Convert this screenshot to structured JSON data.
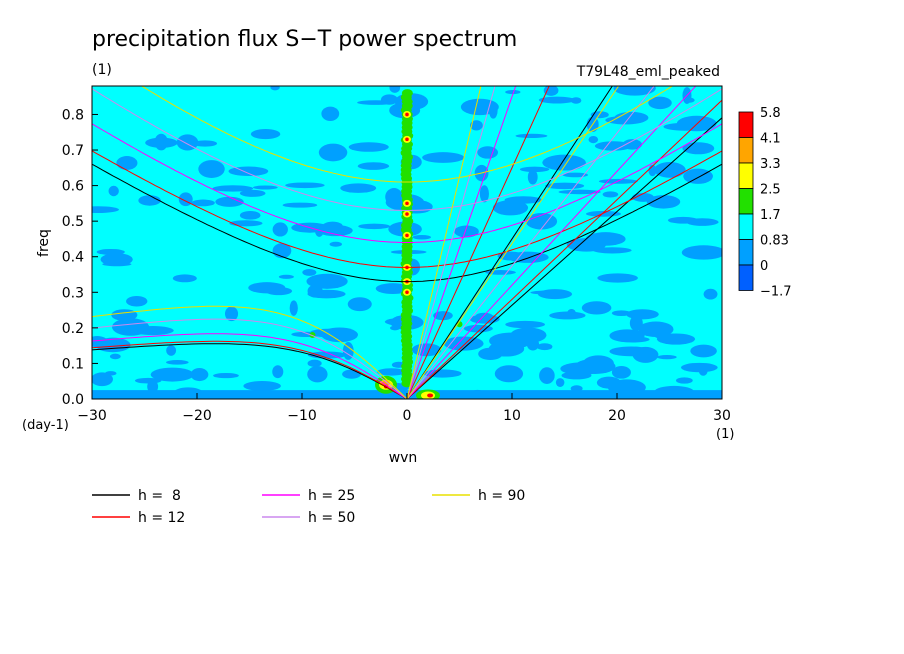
{
  "chart_data": {
    "type": "heatmap",
    "title": "precipitation flux S−T power spectrum",
    "units_left": "(1)",
    "run_name": "T79L48_eml_peaked",
    "xlabel": "wvn",
    "ylabel": "freq",
    "x_units": "(1)",
    "y_units": "(day-1)",
    "xlim": [
      -30,
      30
    ],
    "ylim": [
      0,
      0.88
    ],
    "x_ticks": [
      -30,
      -20,
      -10,
      0,
      10,
      20,
      30
    ],
    "x_tick_labels": [
      "−30",
      "−20",
      "−10",
      "0",
      "10",
      "20",
      "30"
    ],
    "y_ticks": [
      0,
      0.1,
      0.2,
      0.3,
      0.4,
      0.5,
      0.6,
      0.7,
      0.8
    ],
    "y_tick_labels": [
      "0.0",
      "0.1",
      "0.2",
      "0.3",
      "0.4",
      "0.5",
      "0.6",
      "0.7",
      "0.8"
    ],
    "colorbar": {
      "labels": [
        "5.8",
        "4.1",
        "3.3",
        "2.5",
        "1.7",
        "0.83",
        "0",
        "−1.7"
      ],
      "colors": [
        "#ff0000",
        "#ffa500",
        "#ffff00",
        "#22e000",
        "#00ffff",
        "#00a0ff",
        "#0060ff"
      ]
    },
    "dispersion_curves": [
      {
        "label": "h =  8",
        "h": 8,
        "color": "#000000",
        "ig_min_freq": 0.33
      },
      {
        "label": "h = 12",
        "h": 12,
        "color": "#ff0000",
        "ig_min_freq": 0.37
      },
      {
        "label": "h = 25",
        "h": 25,
        "color": "#ff00ff",
        "ig_min_freq": 0.44
      },
      {
        "label": "h = 50",
        "h": 50,
        "color": "#cc88ee",
        "ig_min_freq": 0.53
      },
      {
        "label": "h = 90",
        "h": 90,
        "color": "#e8e000",
        "ig_min_freq": 0.61
      }
    ]
  }
}
